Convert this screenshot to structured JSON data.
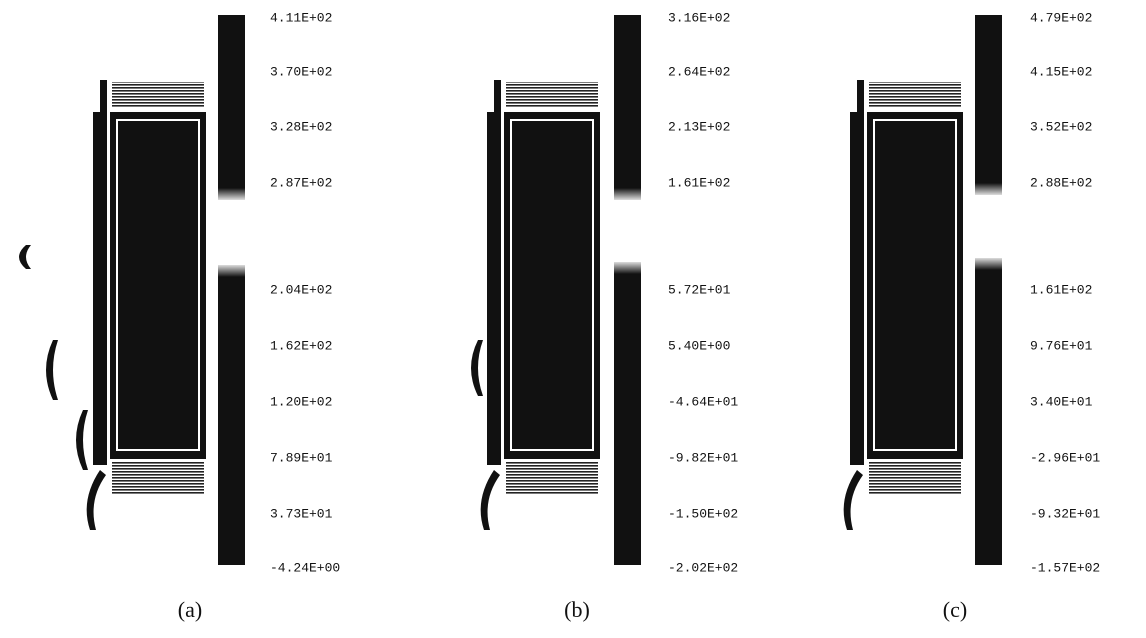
{
  "panels": [
    {
      "caption": "(a)",
      "colorbar_labels": [
        "4.11E+02",
        "3.70E+02",
        "3.28E+02",
        "2.87E+02",
        "2.04E+02",
        "1.62E+02",
        "1.20E+02",
        "7.89E+01",
        "3.73E+01",
        "-4.24E+00"
      ]
    },
    {
      "caption": "(b)",
      "colorbar_labels": [
        "3.16E+02",
        "2.64E+02",
        "2.13E+02",
        "1.61E+02",
        "5.72E+01",
        "5.40E+00",
        "-4.64E+01",
        "-9.82E+01",
        "-1.50E+02",
        "-2.02E+02"
      ]
    },
    {
      "caption": "(c)",
      "colorbar_labels": [
        "4.79E+02",
        "4.15E+02",
        "3.52E+02",
        "2.88E+02",
        "1.61E+02",
        "9.76E+01",
        "3.40E+01",
        "-2.96E+01",
        "-9.32E+01",
        "-1.57E+02"
      ]
    }
  ]
}
